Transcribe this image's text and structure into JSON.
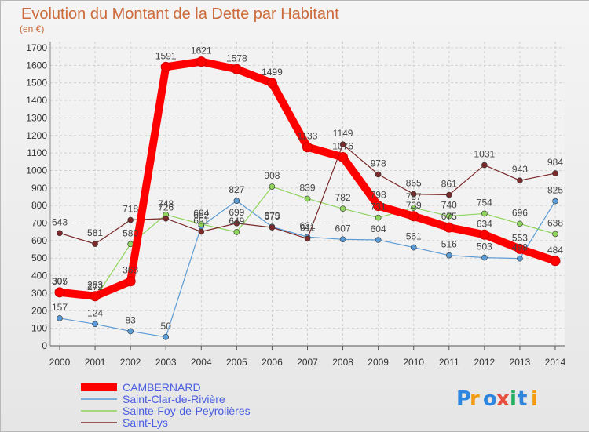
{
  "chart_data": {
    "type": "line",
    "title": "Evolution du Montant de la Dette par Habitant",
    "subtitle": "(en €)",
    "x": [
      "2000",
      "2001",
      "2002",
      "2003",
      "2004",
      "2005",
      "2006",
      "2007",
      "2008",
      "2009",
      "2010",
      "2011",
      "2012",
      "2013",
      "2014"
    ],
    "ylim": [
      0,
      1700
    ],
    "yticks": [
      0,
      100,
      200,
      300,
      400,
      500,
      600,
      700,
      800,
      900,
      1000,
      1100,
      1200,
      1300,
      1400,
      1500,
      1600,
      1700
    ],
    "grid": true,
    "legend_position": "bottom-left",
    "series": [
      {
        "name": "CAMBERNARD",
        "color": "#ff0000",
        "values": [
          305,
          283,
          368,
          1591,
          1621,
          1578,
          1499,
          1133,
          1076,
          798,
          739,
          675,
          634,
          553,
          484
        ]
      },
      {
        "name": "Saint-Clar-de-Rivière",
        "color": "#5b9bd5",
        "values": [
          157,
          124,
          83,
          50,
          682,
          827,
          679,
          621,
          607,
          604,
          561,
          516,
          503,
          498,
          825
        ]
      },
      {
        "name": "Sainte-Foy-de-Peyrolières",
        "color": "#8fd45c",
        "values": [
          307,
          272,
          580,
          748,
          694,
          649,
          908,
          839,
          782,
          731,
          787,
          740,
          754,
          696,
          638
        ]
      },
      {
        "name": "Saint-Lys",
        "color": "#7a2a2a",
        "values": [
          643,
          581,
          718,
          726,
          651,
          699,
          675,
          611,
          1149,
          978,
          865,
          861,
          1031,
          943,
          984
        ]
      }
    ]
  },
  "logo": {
    "text": "Proxiti",
    "letter_colors": [
      "#2e86de",
      "#f39c12",
      "#2e86de",
      "#e74c3c",
      "#27ae60",
      "#2e86de",
      "#f39c12"
    ]
  }
}
